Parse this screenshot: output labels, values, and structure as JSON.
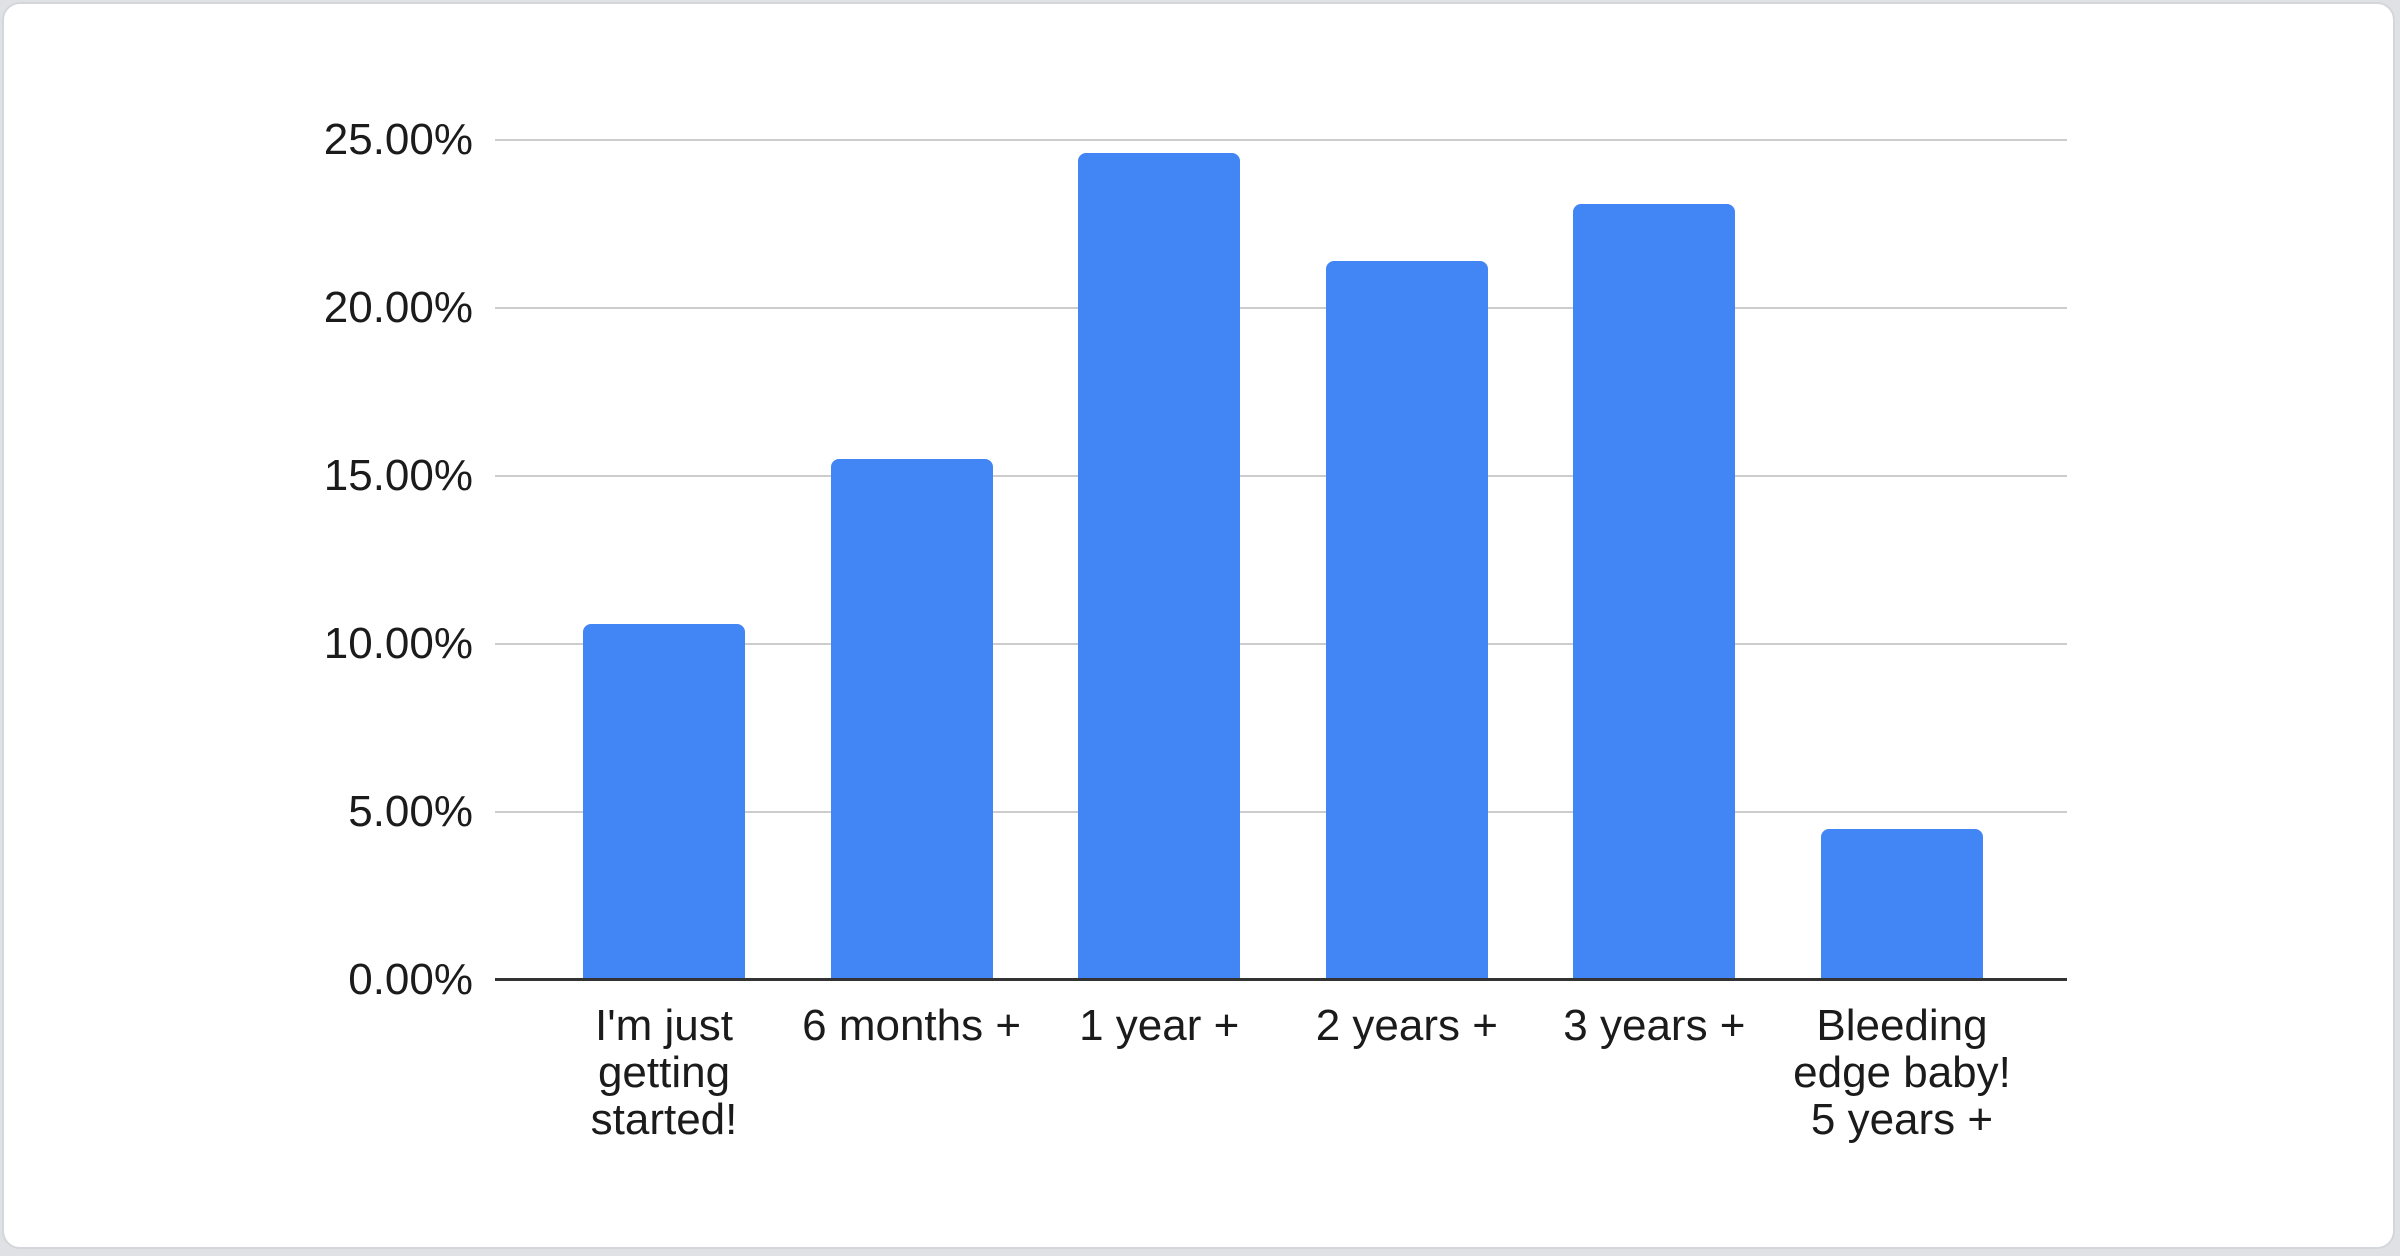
{
  "chart_data": {
    "type": "bar",
    "categories": [
      "I'm just getting started!",
      "6 months +",
      "1 year +",
      "2 years +",
      "3 years +",
      "Bleeding edge baby! 5 years +"
    ],
    "categories_wrapped": [
      "I'm just\ngetting\nstarted!",
      "6 months +",
      "1 year +",
      "2 years +",
      "3 years +",
      "Bleeding\nedge baby!\n5 years +"
    ],
    "values_percent": [
      10.6,
      15.5,
      24.6,
      21.4,
      23.1,
      4.5
    ],
    "y_ticks": [
      {
        "label": "25.00%",
        "value": 25
      },
      {
        "label": "20.00%",
        "value": 20
      },
      {
        "label": "15.00%",
        "value": 15
      },
      {
        "label": "10.00%",
        "value": 10
      },
      {
        "label": "5.00%",
        "value": 5
      },
      {
        "label": "0.00%",
        "value": 0
      }
    ],
    "ylim": [
      0,
      25
    ],
    "grid": true,
    "legend": "none"
  },
  "colors": {
    "bar": "#4285F4",
    "gridline": "#cccccc",
    "axis_line": "#333333",
    "label_text": "#1b1b1b",
    "card_background": "#ffffff",
    "card_border": "#d3d6da",
    "page_background": "#dfe1e4"
  }
}
